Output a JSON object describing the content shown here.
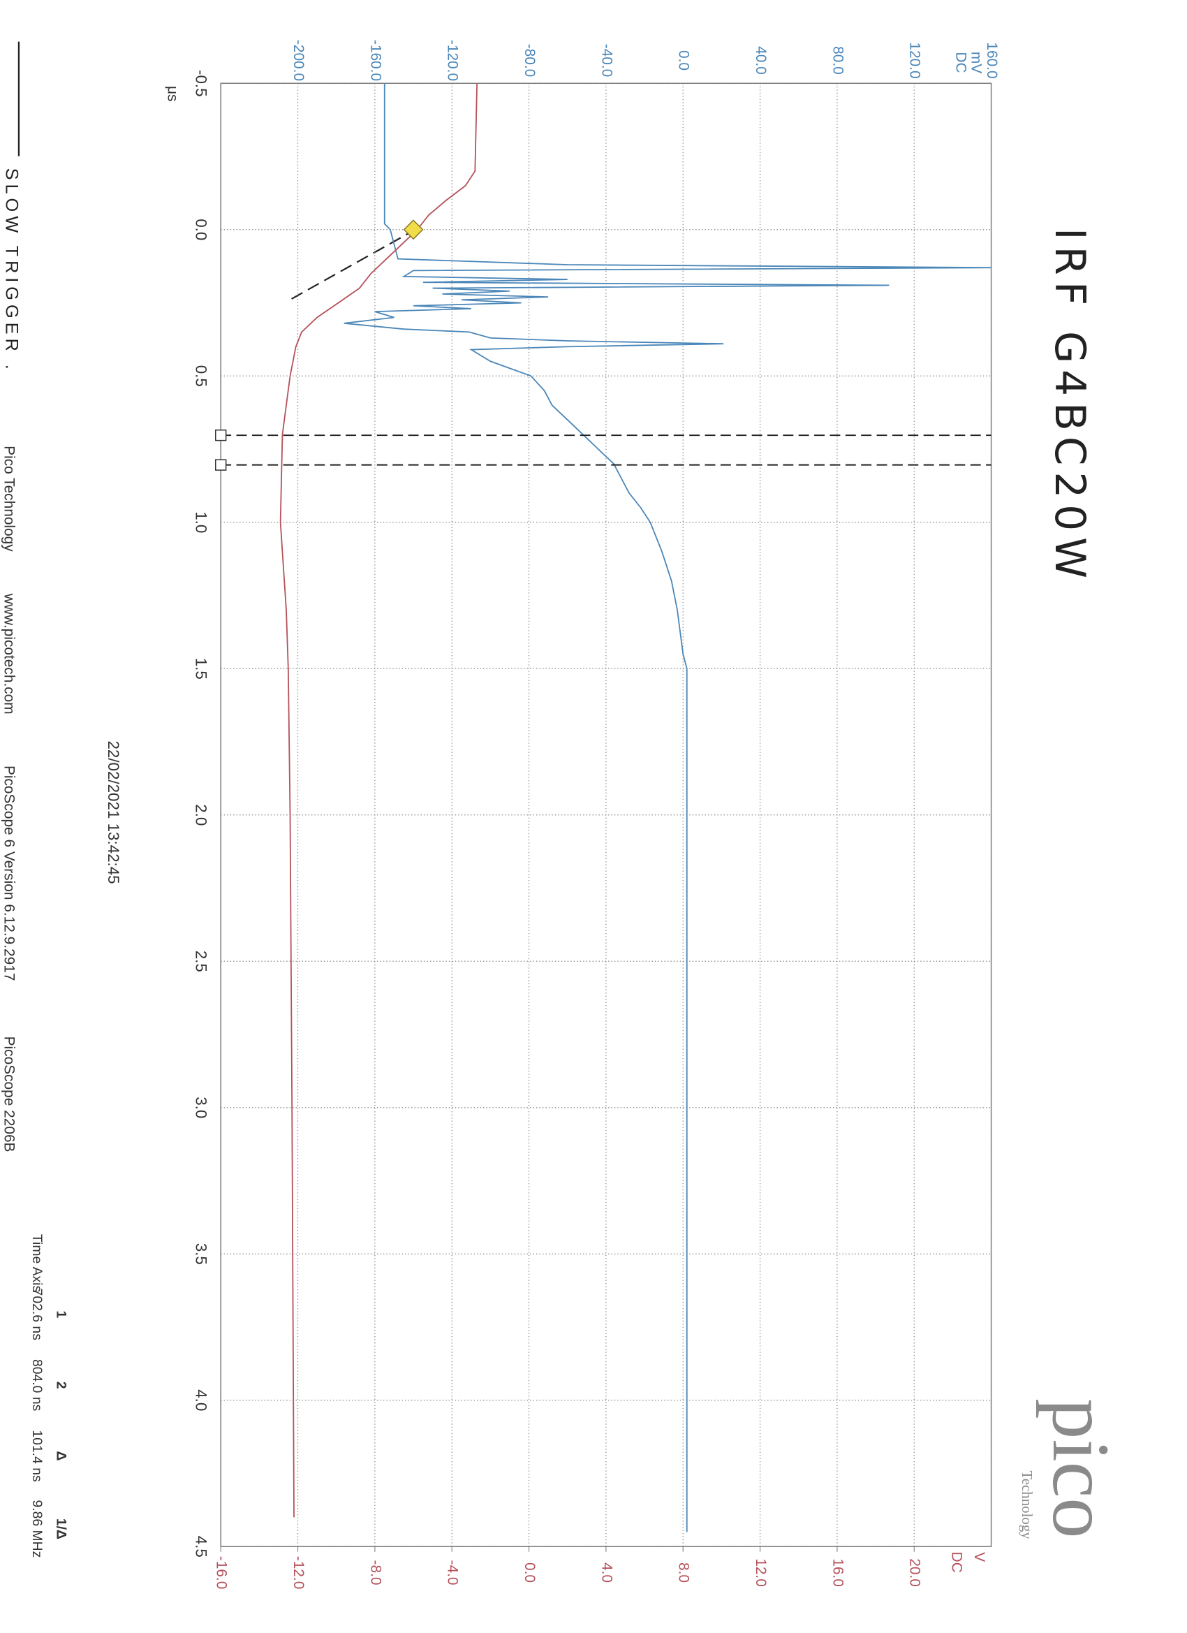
{
  "chart_data": {
    "type": "line",
    "title": "IRF G4BC20W",
    "x_unit": "μs",
    "y_unit": "mV",
    "y_coupling": "DC",
    "y2_unit": "V",
    "y2_coupling": "DC",
    "xlim": [
      -0.5,
      4.5
    ],
    "xticks": [
      -0.5,
      {
        "value": 0,
        "label": "0.0"
      },
      0.5,
      {
        "value": 1,
        "label": "1.0"
      },
      1.5,
      {
        "value": 2,
        "label": "2.0"
      },
      2.5,
      {
        "value": 3,
        "label": "3.0"
      },
      3.5,
      {
        "value": 4,
        "label": "4.0"
      },
      4.5
    ],
    "ylim": [
      -240,
      160
    ],
    "yticks": [
      {
        "value": -200,
        "label": "-200.0"
      },
      {
        "value": -160,
        "label": "-160.0"
      },
      {
        "value": -120,
        "label": "-120.0"
      },
      {
        "value": -80,
        "label": "-80.0"
      },
      {
        "value": -40,
        "label": "-40.0"
      },
      {
        "value": 0,
        "label": "0.0"
      },
      {
        "value": 40,
        "label": "40.0"
      },
      {
        "value": 80,
        "label": "80.0"
      },
      {
        "value": 120,
        "label": "120.0"
      },
      {
        "value": 160,
        "label": "160.0"
      }
    ],
    "y2lim": [
      -16,
      24
    ],
    "y2ticks": [
      {
        "value": -16,
        "label": "-16.0"
      },
      {
        "value": -12,
        "label": "-12.0"
      },
      {
        "value": -8,
        "label": "-8.0"
      },
      {
        "value": -4,
        "label": "-4.0"
      },
      {
        "value": 0,
        "label": "0.0"
      },
      {
        "value": 4,
        "label": "4.0"
      },
      {
        "value": 8,
        "label": "8.0"
      },
      {
        "value": 12,
        "label": "12.0"
      },
      {
        "value": 16,
        "label": "16.0"
      },
      {
        "value": 20,
        "label": "20.0"
      }
    ],
    "grid": true,
    "series": [
      {
        "color": "#4a86b8",
        "x": [
          -0.5,
          -0.02,
          0.0,
          0.05,
          0.1,
          0.12,
          0.13,
          0.14,
          0.16,
          0.17,
          0.18,
          0.19,
          0.2,
          0.21,
          0.22,
          0.23,
          0.24,
          0.25,
          0.26,
          0.27,
          0.28,
          0.3,
          0.32,
          0.34,
          0.35,
          0.37,
          0.38,
          0.39,
          0.4,
          0.41,
          0.45,
          0.5,
          0.55,
          0.6,
          0.65,
          0.7,
          0.75,
          0.8,
          0.85,
          0.9,
          0.95,
          1.0,
          1.1,
          1.2,
          1.3,
          1.45,
          1.5,
          4.45
        ],
        "values": [
          -155,
          -155,
          -152,
          -150,
          -148,
          -60,
          160,
          -140,
          -145,
          -60,
          -135,
          107,
          -130,
          -90,
          -125,
          -70,
          -115,
          -84,
          -140,
          -110,
          -160,
          -150,
          -176,
          -145,
          -111,
          -100,
          -60,
          21,
          -60,
          -110,
          -100,
          -79,
          -72,
          -68,
          -60,
          -52,
          -44,
          -36,
          -32,
          -28,
          -22,
          -17,
          -11,
          -6,
          -3,
          0,
          2,
          2
        ]
      },
      {
        "color": "#b5505a",
        "axis": "y2",
        "x": [
          -0.5,
          -0.2,
          -0.15,
          -0.1,
          -0.05,
          0.0,
          0.05,
          0.1,
          0.15,
          0.2,
          0.25,
          0.3,
          0.35,
          0.4,
          0.5,
          0.7,
          1.0,
          1.3,
          1.5,
          2.0,
          3.0,
          4.4
        ],
        "values": [
          -2.7,
          -2.8,
          -3.3,
          -4.3,
          -5.2,
          -5.8,
          -6.6,
          -7.4,
          -8.2,
          -8.8,
          -9.9,
          -11.0,
          -11.8,
          -12.1,
          -12.4,
          -12.8,
          -12.9,
          -12.6,
          -12.5,
          -12.4,
          -12.3,
          -12.2
        ]
      }
    ],
    "trigger": {
      "x": 0,
      "level": -140
    },
    "cursors": [
      {
        "value": 0.7026,
        "label": "702.6 ns"
      },
      {
        "value": 0.804,
        "label": "804.0 ns"
      }
    ]
  },
  "cursor_table": {
    "title": "Time Axis",
    "headers": [
      "1",
      "2",
      "Δ",
      "1/Δ"
    ],
    "delta": "101.4 ns",
    "inverse_delta": "9.86 MHz"
  },
  "date": "22/02/2021 13:42:45",
  "note": "SLOW TRIGGER .",
  "footer": [
    "Pico Technology",
    "www.picotech.com",
    "PicoScope 6 Version 6.12.9.2917",
    "PicoScope 2206B"
  ],
  "logo": {
    "name": "pico",
    "tagline": "Technology"
  }
}
